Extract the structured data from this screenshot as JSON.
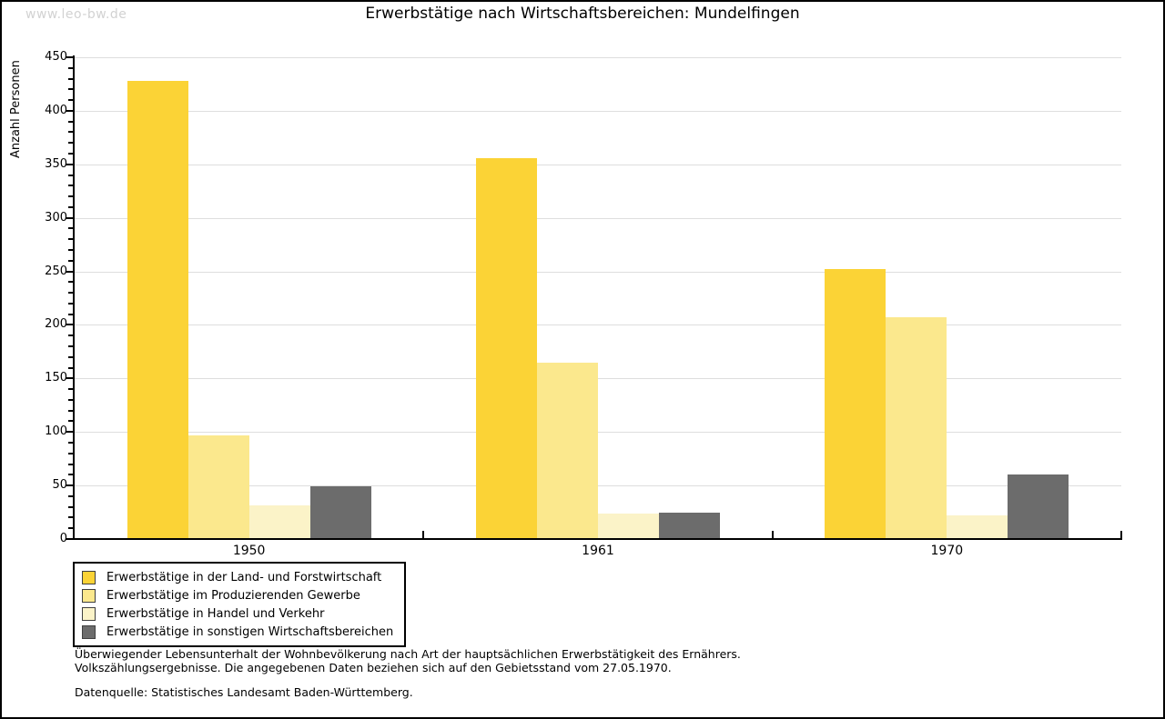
{
  "watermark": "www.leo-bw.de",
  "chart_data": {
    "type": "bar",
    "title": "Erwerbstätige nach Wirtschaftsbereichen: Mundelfingen",
    "ylabel": "Anzahl Personen",
    "xlabel": "",
    "categories": [
      "1950",
      "1961",
      "1970"
    ],
    "series": [
      {
        "name": "Erwerbstätige in der Land- und Forstwirtschaft",
        "color": "#FBD336",
        "values": [
          428,
          356,
          252
        ]
      },
      {
        "name": "Erwerbstätige im Produzierenden Gewerbe",
        "color": "#FBE88D",
        "values": [
          97,
          165,
          207
        ]
      },
      {
        "name": "Erwerbstätige in Handel und Verkehr",
        "color": "#FBF3C8",
        "values": [
          31,
          24,
          22
        ]
      },
      {
        "name": "Erwerbstätige in sonstigen Wirtschaftsbereichen",
        "color": "#6C6C6C",
        "values": [
          49,
          25,
          60
        ]
      }
    ],
    "ylim": [
      0,
      450
    ],
    "ytick_step": 50,
    "yminor_step": 10,
    "grid": true,
    "gridline_color": "#dedede",
    "legend_position": "bottom-left"
  },
  "footnotes": {
    "line1": "Überwiegender Lebensunterhalt der Wohnbevölkerung nach Art der hauptsächlichen Erwerbstätigkeit des Ernährers.",
    "line2": "Volkszählungsergebnisse. Die angegebenen Daten beziehen sich auf den Gebietsstand vom 27.05.1970.",
    "source": "Datenquelle: Statistisches Landesamt Baden-Württemberg."
  }
}
